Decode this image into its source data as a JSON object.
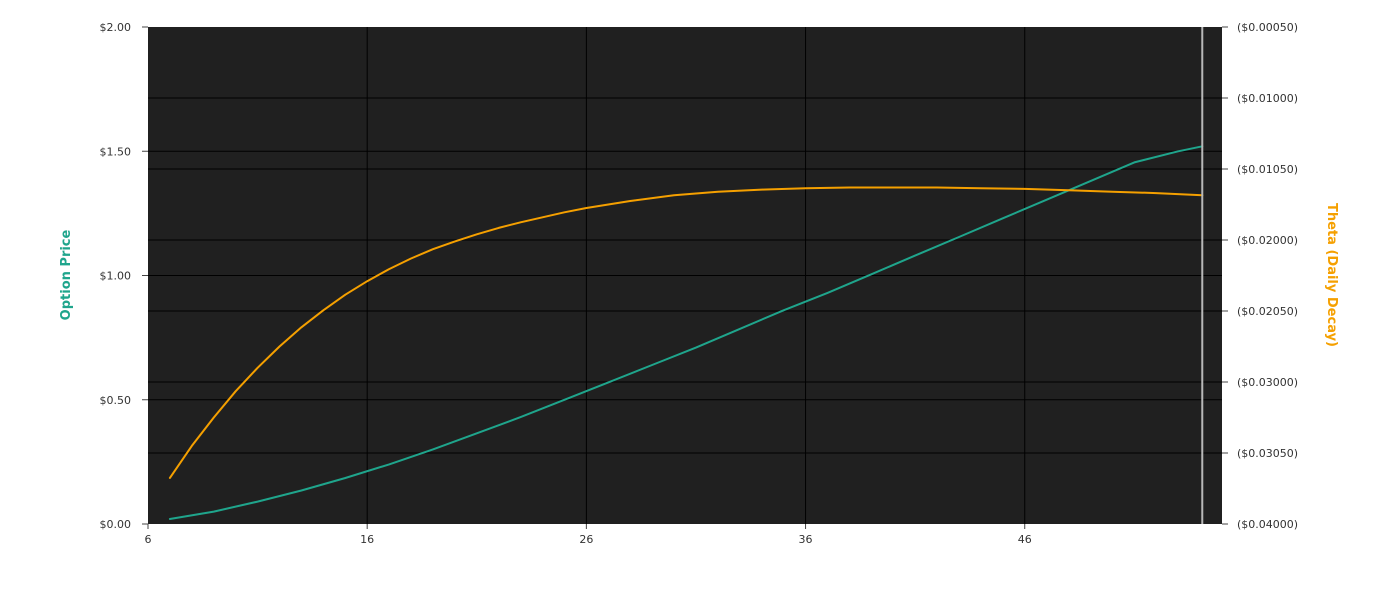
{
  "chart_data": {
    "type": "line",
    "x_ticks": [
      "6",
      "16",
      "26",
      "36",
      "46"
    ],
    "xlim": [
      6,
      55
    ],
    "left_axis": {
      "label": "Option Price",
      "ticks": [
        "$0.00",
        "$0.50",
        "$1.00",
        "$1.50",
        "$2.00"
      ],
      "ylim": [
        0,
        2
      ]
    },
    "right_axis": {
      "label": "Theta (Daily Decay)",
      "ticks": [
        "($0.00050)",
        "($0.01000)",
        "($0.01050)",
        "($0.02000)",
        "($0.02050)",
        "($0.03000)",
        "($0.03050)",
        "($0.04000)"
      ],
      "ylim": [
        0,
        7
      ]
    },
    "grid": true,
    "series": [
      {
        "axis": "left",
        "color": "#1fa58c",
        "x": [
          7,
          9,
          11,
          13,
          15,
          17,
          19,
          21,
          23,
          25,
          27,
          29,
          31,
          33,
          35,
          37,
          39,
          41,
          43,
          45,
          47,
          49,
          51,
          53,
          54.1
        ],
        "y": [
          0.02,
          0.05,
          0.09,
          0.135,
          0.185,
          0.24,
          0.3,
          0.365,
          0.43,
          0.5,
          0.57,
          0.64,
          0.71,
          0.785,
          0.86,
          0.93,
          1.005,
          1.08,
          1.155,
          1.23,
          1.305,
          1.38,
          1.455,
          1.5,
          1.52
        ]
      },
      {
        "axis": "right",
        "color": "#f5a000",
        "x": [
          7,
          8,
          9,
          10,
          11,
          12,
          13,
          14,
          15,
          16,
          17,
          18,
          19,
          20,
          21,
          22,
          23,
          24,
          25,
          26,
          27,
          28,
          30,
          32,
          34,
          36,
          38,
          40,
          42,
          44,
          46,
          48,
          50,
          52,
          54.1
        ],
        "y": [
          6.35,
          5.9,
          5.5,
          5.13,
          4.8,
          4.5,
          4.23,
          3.99,
          3.77,
          3.58,
          3.41,
          3.26,
          3.13,
          3.02,
          2.92,
          2.83,
          2.75,
          2.68,
          2.61,
          2.55,
          2.5,
          2.45,
          2.37,
          2.32,
          2.29,
          2.27,
          2.26,
          2.26,
          2.26,
          2.27,
          2.28,
          2.3,
          2.32,
          2.34,
          2.37
        ]
      }
    ],
    "cursor_x": 54.1
  }
}
